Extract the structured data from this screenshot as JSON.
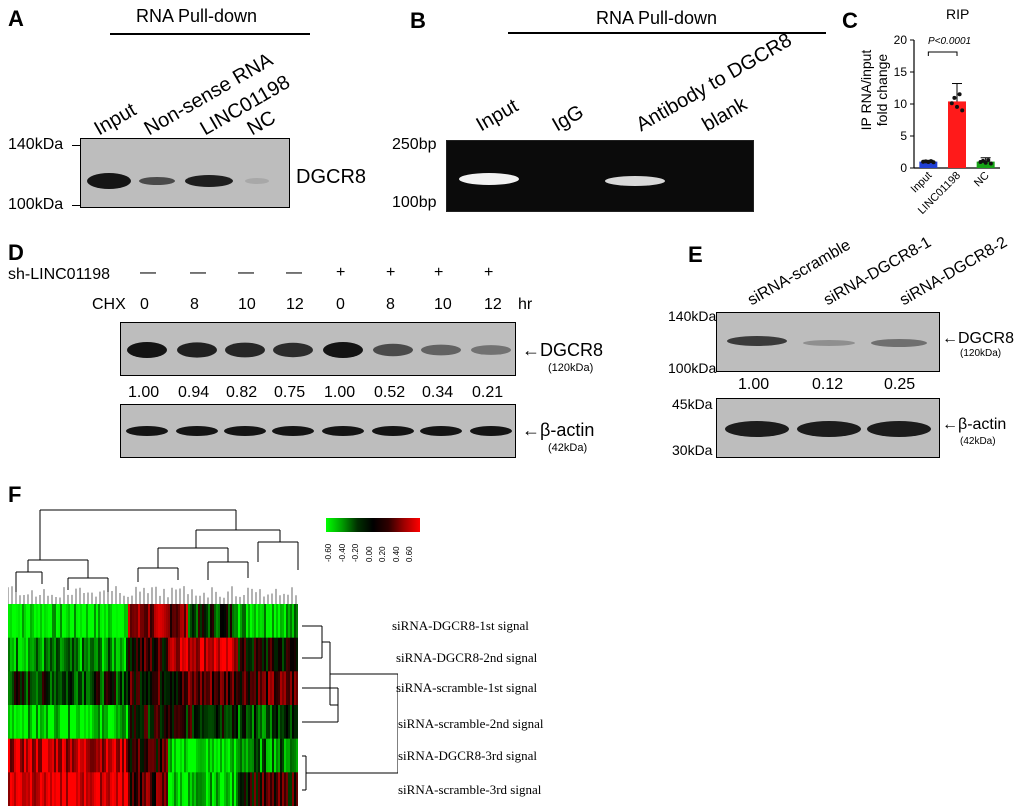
{
  "panelA": {
    "letter": "A",
    "header": "RNA Pull-down",
    "lanes": [
      "Input",
      "Non-sense RNA",
      "LINC01198",
      "NC"
    ],
    "markers": [
      "140kDa",
      "100kDa"
    ],
    "band_label": "DGCR8",
    "band_intensity": [
      1.0,
      0.55,
      0.85,
      0.1
    ]
  },
  "panelB": {
    "letter": "B",
    "header": "RNA Pull-down",
    "lanes": [
      "Input",
      "IgG",
      "Antibody to DGCR8",
      "blank"
    ],
    "markers": [
      "250bp",
      "100bp"
    ],
    "band_intensity": [
      1.0,
      0.0,
      0.8,
      0.0
    ]
  },
  "panelC": {
    "letter": "C",
    "title": "RIP",
    "ylabel_line1": "IP RNA/input",
    "ylabel_line2": "fold change",
    "pvalue": "P<0.0001",
    "yticks": [
      "0",
      "5",
      "10",
      "15",
      "20"
    ],
    "chart_data": {
      "type": "bar",
      "categories": [
        "Input",
        "LINC01198",
        "NC"
      ],
      "values": [
        1.0,
        10.4,
        1.0
      ],
      "errors": [
        0.2,
        2.8,
        0.6
      ],
      "colors": [
        "#1f3fd6",
        "#ff1a1a",
        "#17a317"
      ],
      "ylim": [
        0,
        20
      ],
      "title": "RIP",
      "ylabel": "IP RNA/input fold change"
    }
  },
  "panelD": {
    "letter": "D",
    "sh_label": "sh-LINC01198",
    "sh_marks": [
      "—",
      "—",
      "—",
      "—",
      "+",
      "+",
      "+",
      "+"
    ],
    "chx_label": "CHX",
    "chx_values": [
      "0",
      "8",
      "10",
      "12",
      "0",
      "8",
      "10",
      "12"
    ],
    "chx_unit": "hr",
    "quant": [
      "1.00",
      "0.94",
      "0.82",
      "0.75",
      "1.00",
      "0.52",
      "0.34",
      "0.21"
    ],
    "band1_label": "DGCR8",
    "band1_sub": "(120kDa)",
    "band2_label": "β-actin",
    "band2_sub": "(42kDa)"
  },
  "panelE": {
    "letter": "E",
    "lanes": [
      "siRNA-scramble",
      "siRNA-DGCR8-1",
      "siRNA-DGCR8-2"
    ],
    "markers_top": [
      "140kDa",
      "100kDa"
    ],
    "markers_bottom": [
      "45kDa",
      "30kDa"
    ],
    "quant": [
      "1.00",
      "0.12",
      "0.25"
    ],
    "band1_label": "DGCR8",
    "band1_sub": "(120kDa)",
    "band2_label": "β-actin",
    "band2_sub": "(42kDa)"
  },
  "panelF": {
    "letter": "F",
    "scale_labels": [
      "-0.60",
      "-0.40",
      "-0.20",
      "0.00",
      "0.20",
      "0.40",
      "0.60"
    ],
    "rows": [
      "siRNA-DGCR8-1st signal",
      "siRNA-DGCR8-2nd signal",
      "siRNA-scramble-1st signal",
      "siRNA-scramble-2nd signal",
      "siRNA-DGCR8-3rd signal",
      "siRNA-scramble-3rd signal"
    ]
  }
}
